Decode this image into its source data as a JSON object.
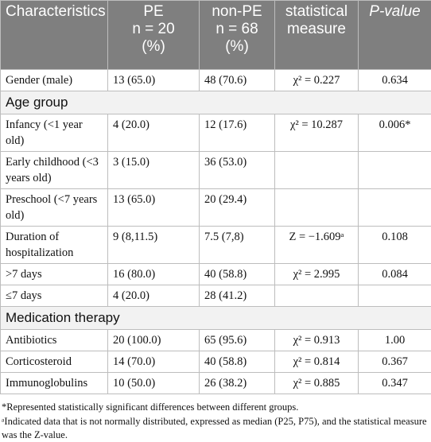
{
  "table": {
    "header": [
      [
        "Characteristics"
      ],
      [
        "PE",
        "n = 20",
        "(%)"
      ],
      [
        "non-PE",
        "n = 68",
        "(%)"
      ],
      [
        "statistical",
        "measure"
      ],
      [
        "P-value"
      ]
    ],
    "rows": [
      {
        "cells": [
          "Gender (male)",
          "13 (65.0)",
          "48 (70.6)",
          "χ² = 0.227",
          "0.634"
        ]
      },
      {
        "section": "Age group"
      },
      {
        "cells": [
          "Infancy (<1 year old)",
          "4 (20.0)",
          "12 (17.6)",
          "χ² = 10.287",
          "0.006*"
        ]
      },
      {
        "cells": [
          "Early childhood (<3 years old)",
          "3 (15.0)",
          "36 (53.0)",
          null,
          null
        ]
      },
      {
        "cells": [
          "Preschool (<7 years old)",
          "13 (65.0)",
          "20 (29.4)",
          null,
          null
        ]
      },
      {
        "cells": [
          "Duration of hospitalization",
          "9 (8,11.5)",
          "7.5 (7,8)",
          "Z = −1.609ᵃ",
          "0.108"
        ]
      },
      {
        "cells": [
          ">7 days",
          "16 (80.0)",
          "40 (58.8)",
          "χ² = 2.995",
          "0.084"
        ]
      },
      {
        "cells": [
          "≤7 days",
          "4 (20.0)",
          "28 (41.2)",
          null,
          null
        ]
      },
      {
        "section": "Medication therapy"
      },
      {
        "cells": [
          "Antibiotics",
          "20 (100.0)",
          "65 (95.6)",
          "χ² = 0.913",
          "1.00"
        ]
      },
      {
        "cells": [
          "Corticosteroid",
          "14 (70.0)",
          "40 (58.8)",
          "χ² = 0.814",
          "0.367"
        ]
      },
      {
        "cells": [
          "Immunoglobulins",
          "10 (50.0)",
          "26 (38.2)",
          "χ² = 0.885",
          "0.347"
        ]
      }
    ]
  },
  "footnotes": [
    "*Represented statistically significant differences between different groups.",
    "ᵃIndicated data that is not normally distributed, expressed as median (P25, P75), and the statistical measure was the Z-value."
  ]
}
